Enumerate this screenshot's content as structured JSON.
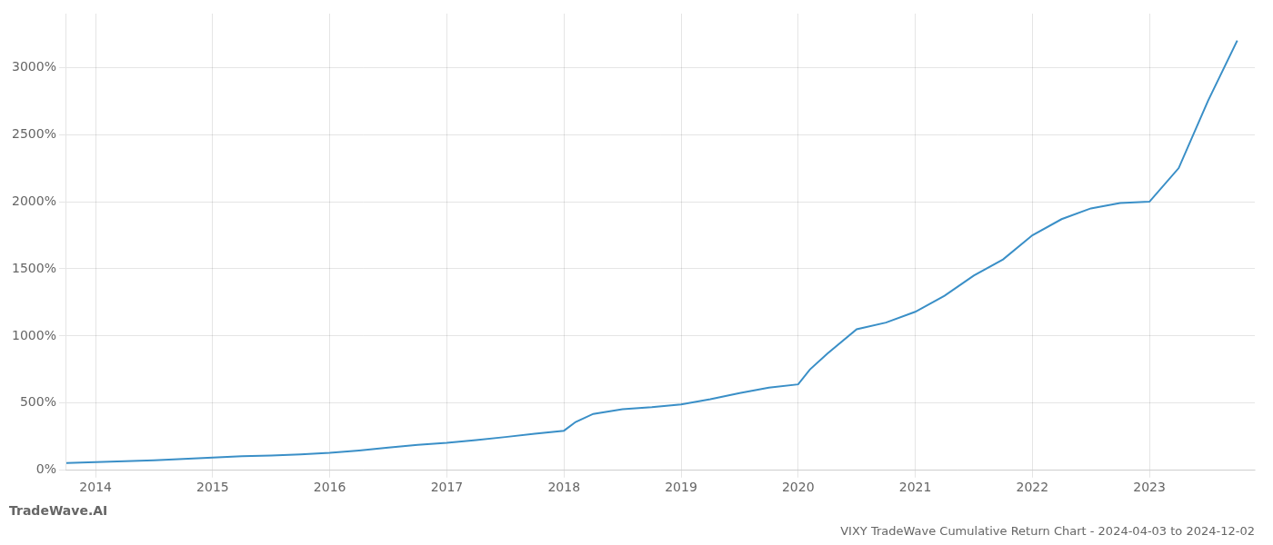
{
  "chart_data": {
    "type": "line",
    "title": "VIXY TradeWave Cumulative Return Chart - 2024-04-03 to 2024-12-02",
    "annotations": [
      "TradeWave.AI"
    ],
    "x": [
      2013.75,
      2014.0,
      2014.25,
      2014.5,
      2014.75,
      2015.0,
      2015.25,
      2015.5,
      2015.75,
      2016.0,
      2016.25,
      2016.5,
      2016.75,
      2017.0,
      2017.25,
      2017.5,
      2017.75,
      2018.0,
      2018.1,
      2018.25,
      2018.5,
      2018.75,
      2019.0,
      2019.25,
      2019.5,
      2019.75,
      2020.0,
      2020.1,
      2020.25,
      2020.5,
      2020.75,
      2021.0,
      2021.25,
      2021.5,
      2021.75,
      2022.0,
      2022.25,
      2022.5,
      2022.75,
      2023.0,
      2023.25,
      2023.5,
      2023.75
    ],
    "values": [
      55,
      62,
      68,
      75,
      85,
      95,
      105,
      110,
      118,
      130,
      148,
      170,
      190,
      205,
      225,
      248,
      272,
      295,
      360,
      420,
      455,
      470,
      490,
      530,
      575,
      615,
      640,
      750,
      870,
      1050,
      1100,
      1180,
      1300,
      1450,
      1570,
      1750,
      1870,
      1950,
      1990,
      2000,
      2250,
      2750,
      3200
    ],
    "color": "#3a8fc7",
    "xlim": [
      2013.75,
      2023.9
    ],
    "xticks": [
      2014,
      2015,
      2016,
      2017,
      2018,
      2019,
      2020,
      2021,
      2022,
      2023
    ],
    "ylim": [
      0,
      3400
    ],
    "yticks": [
      {
        "value": 0,
        "label": "0%"
      },
      {
        "value": 500,
        "label": "500%"
      },
      {
        "value": 1000,
        "label": "1000%"
      },
      {
        "value": 1500,
        "label": "1500%"
      },
      {
        "value": 2000,
        "label": "2000%"
      },
      {
        "value": 2500,
        "label": "2500%"
      },
      {
        "value": 3000,
        "label": "3000%"
      }
    ],
    "grid": true
  }
}
